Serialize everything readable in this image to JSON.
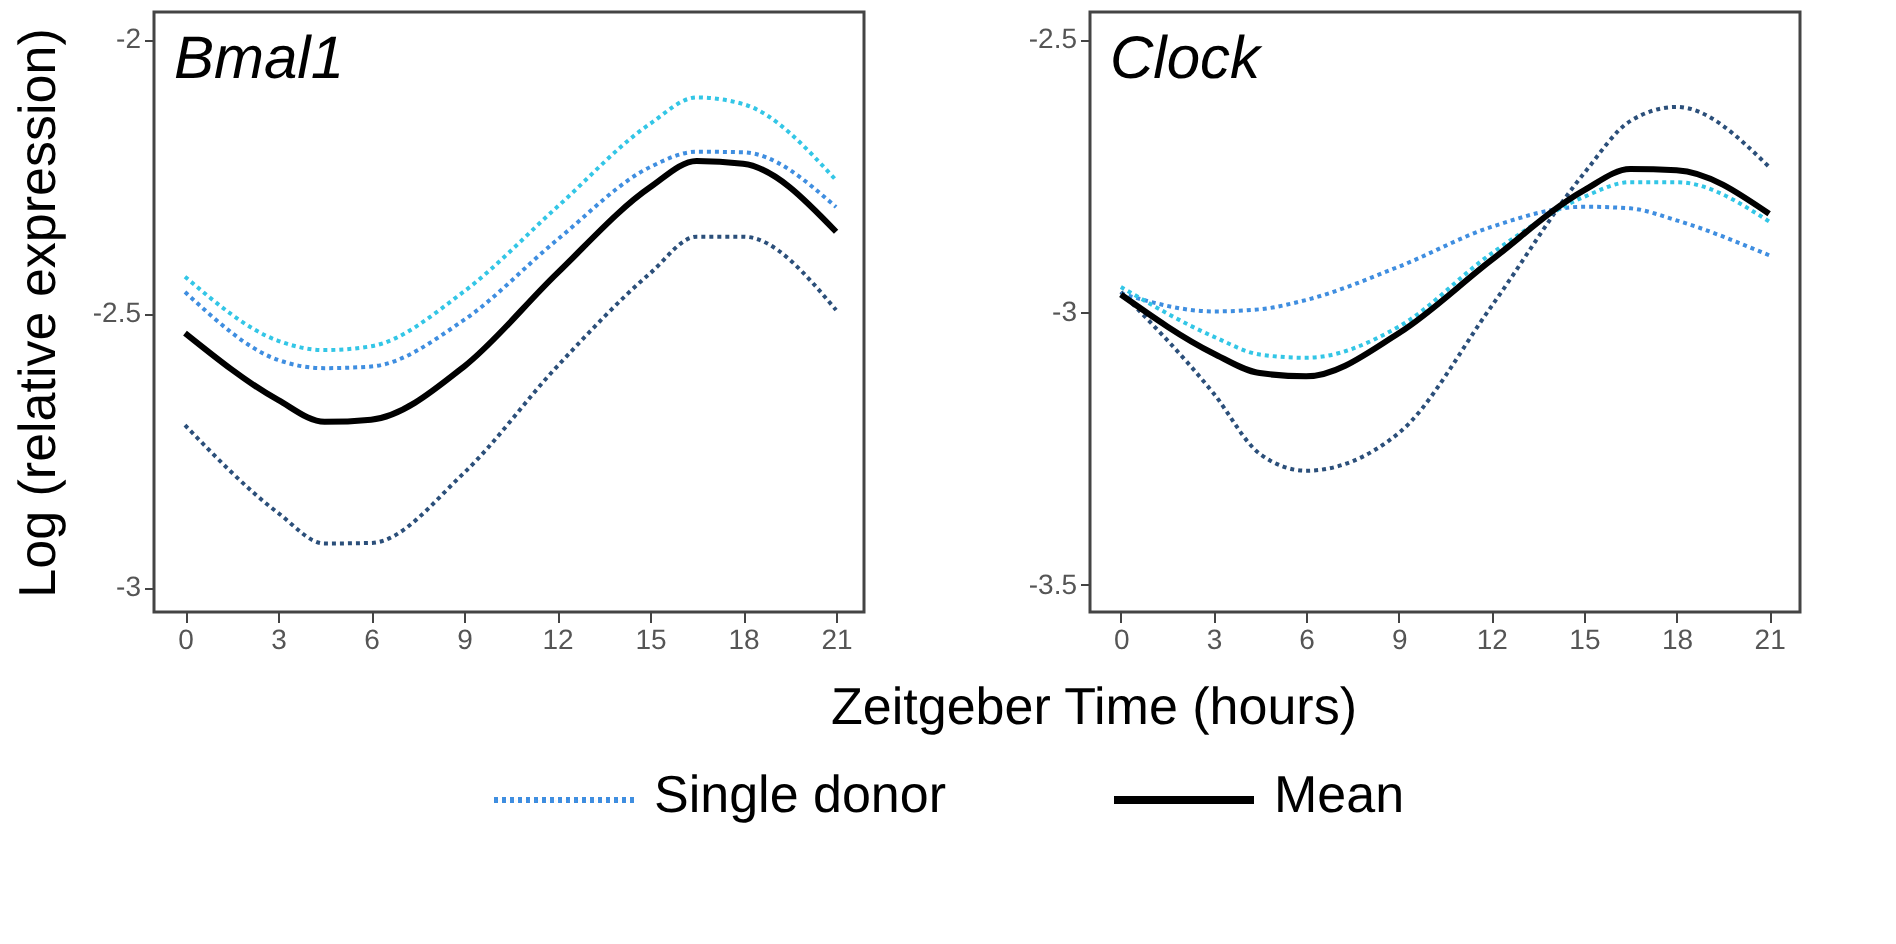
{
  "chart_data": [
    {
      "type": "line",
      "title": "Bmal1",
      "xlabel": "Zeitgeber Time (hours)",
      "ylabel": "Log (relative expression)",
      "legend": "bottom",
      "xlim": [
        -1,
        21.9
      ],
      "ylim": [
        -3.045,
        -1.95
      ],
      "xticks": [
        0,
        3,
        6,
        9,
        12,
        15,
        18,
        21
      ],
      "yticks": [
        -3,
        -2.5,
        -2
      ],
      "x": [
        0,
        3,
        4.5,
        6,
        9,
        12,
        15,
        16.5,
        18,
        21
      ],
      "series": [
        {
          "color": "#33c6e6",
          "line_style": "dotted",
          "values": [
            -2.433,
            -2.55,
            -2.567,
            -2.56,
            -2.46,
            -2.306,
            -2.154,
            -2.106,
            -2.118,
            -2.257
          ]
        },
        {
          "name": "Single donor",
          "color": "#3f8ee0",
          "line_style": "dotted",
          "values": [
            -2.461,
            -2.585,
            -2.6,
            -2.597,
            -2.512,
            -2.366,
            -2.233,
            -2.205,
            -2.206,
            -2.306
          ]
        },
        {
          "color": "#2b4f7a",
          "line_style": "dotted",
          "values": [
            -2.704,
            -2.864,
            -2.92,
            -2.919,
            -2.791,
            -2.597,
            -2.427,
            -2.36,
            -2.36,
            -2.494
          ]
        },
        {
          "name": "Mean",
          "color": "#000000",
          "line_style": "solid",
          "values": [
            -2.536,
            -2.658,
            -2.698,
            -2.694,
            -2.597,
            -2.427,
            -2.27,
            -2.222,
            -2.227,
            -2.351
          ]
        }
      ]
    },
    {
      "type": "line",
      "title": "Clock",
      "xlim": [
        -1,
        22
      ],
      "ylim": [
        -3.55,
        -2.45
      ],
      "xticks": [
        0,
        3,
        6,
        9,
        12,
        15,
        18,
        21
      ],
      "yticks": [
        -3.5,
        -3,
        -2.5
      ],
      "x": [
        0,
        3,
        4.5,
        6,
        9,
        12,
        15,
        16.5,
        18,
        21
      ],
      "series": [
        {
          "color": "#2b4f7a",
          "line_style": "dotted",
          "values": [
            -2.963,
            -3.149,
            -3.26,
            -3.291,
            -3.222,
            -2.99,
            -2.746,
            -2.65,
            -2.624,
            -2.734
          ]
        },
        {
          "color": "#3f8ee0",
          "line_style": "dotted",
          "values": [
            -2.966,
            -2.999,
            -2.995,
            -2.978,
            -2.917,
            -2.844,
            -2.807,
            -2.81,
            -2.832,
            -2.896
          ]
        },
        {
          "color": "#33c6e6",
          "line_style": "dotted",
          "values": [
            -2.954,
            -3.045,
            -3.078,
            -3.084,
            -3.027,
            -2.893,
            -2.789,
            -2.762,
            -2.762,
            -2.834
          ]
        },
        {
          "color": "#000000",
          "line_style": "solid",
          "values": [
            -2.968,
            -3.076,
            -3.112,
            -3.118,
            -3.039,
            -2.905,
            -2.777,
            -2.738,
            -2.74,
            -2.82
          ]
        }
      ]
    }
  ]
}
